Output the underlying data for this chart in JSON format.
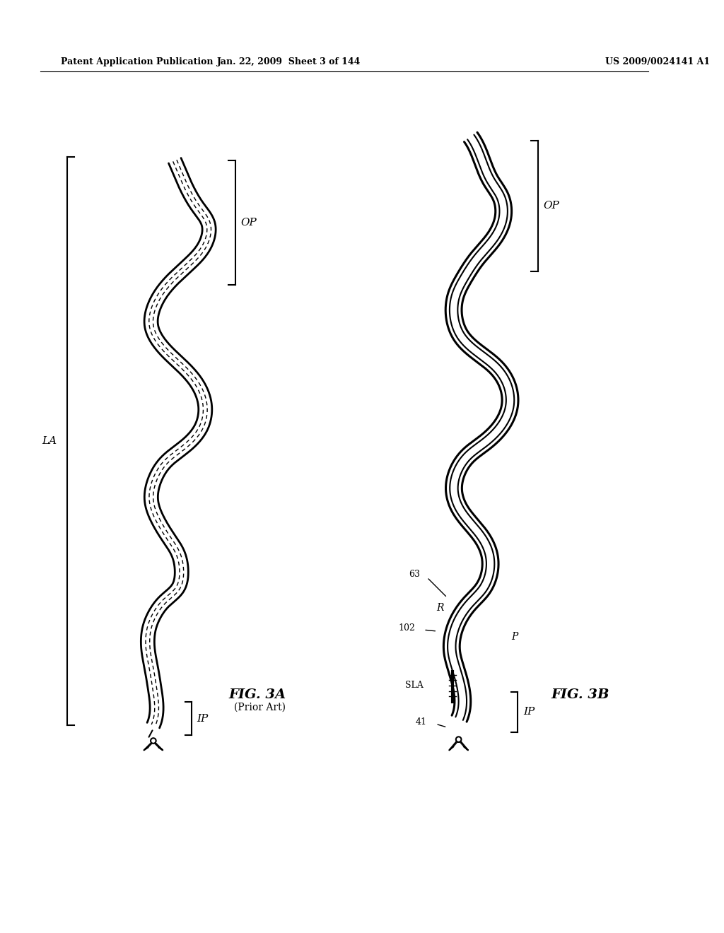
{
  "bg_color": "#ffffff",
  "header_left": "Patent Application Publication",
  "header_center": "Jan. 22, 2009  Sheet 3 of 144",
  "header_right": "US 2009/0024141 A1",
  "fig3a_label": "FIG. 3A",
  "fig3a_sublabel": "(Prior Art)",
  "fig3b_label": "FIG. 3B",
  "label_LA": "LA",
  "label_OP_3a": "OP",
  "label_IP_3a": "IP",
  "label_OP_3b": "OP",
  "label_IP_3b": "IP",
  "label_R": "R",
  "label_P": "P",
  "label_63": "63",
  "label_102": "102",
  "label_41": "41",
  "label_SLA": "SLA"
}
